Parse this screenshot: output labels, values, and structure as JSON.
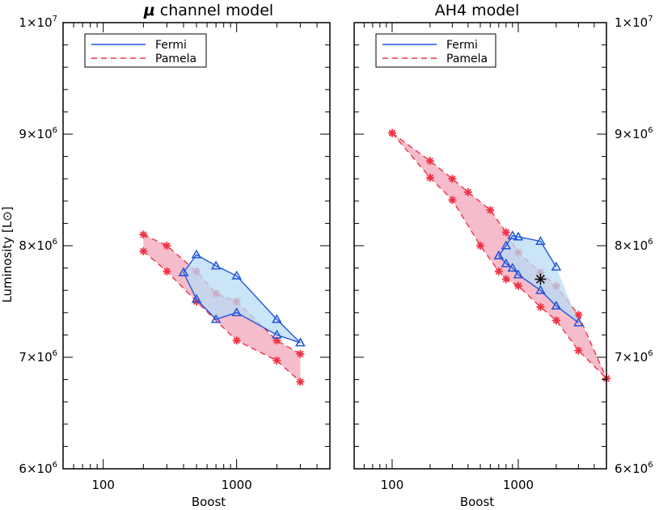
{
  "chart_data": [
    {
      "type": "area",
      "title": "channel model",
      "title_symbol": "μ",
      "xlabel": "Boost",
      "ylabel": "Luminosity [L",
      "ylabel_symbol": "⊙",
      "ylabel_close": "]",
      "xscale": "log",
      "xlim": [
        50,
        5000
      ],
      "ylim": [
        6000000,
        10000000
      ],
      "xticks": [
        100,
        1000
      ],
      "xtick_labels": [
        "100",
        "1000"
      ],
      "yticks": [
        {
          "value": 6000000,
          "mantissa": "6",
          "times": "×",
          "base": "10",
          "exp": "6"
        },
        {
          "value": 7000000,
          "mantissa": "7",
          "times": "×",
          "base": "10",
          "exp": "6"
        },
        {
          "value": 8000000,
          "mantissa": "8",
          "times": "×",
          "base": "10",
          "exp": "6"
        },
        {
          "value": 9000000,
          "mantissa": "9",
          "times": "×",
          "base": "10",
          "exp": "6"
        },
        {
          "value": 10000000,
          "mantissa": "1",
          "times": "×",
          "base": "10",
          "exp": "7"
        }
      ],
      "ytick_side": "left",
      "legend": [
        {
          "label": "Fermi",
          "style": "solid",
          "color": "#2255dd"
        },
        {
          "label": "Pamela",
          "style": "dashed",
          "color": "#ee3344"
        }
      ],
      "legend_position": "top-left",
      "series": [
        {
          "name": "Pamela",
          "line_color": "#ee3344",
          "fill_color": "#f2a6bb",
          "marker": "asterisk",
          "upper": [
            [
              200,
              8100000
            ],
            [
              300,
              8000000
            ],
            [
              500,
              7770000
            ],
            [
              700,
              7570000
            ],
            [
              1000,
              7500000
            ],
            [
              2000,
              7150000
            ],
            [
              3000,
              7030000
            ]
          ],
          "lower": [
            [
              200,
              7950000
            ],
            [
              300,
              7770000
            ],
            [
              500,
              7500000
            ],
            [
              1000,
              7150000
            ],
            [
              2000,
              6970000
            ],
            [
              3000,
              6780000
            ]
          ]
        },
        {
          "name": "Fermi",
          "line_color": "#2255dd",
          "fill_color": "#b8dcf5",
          "marker": "triangle",
          "upper": [
            [
              400,
              7760000
            ],
            [
              500,
              7920000
            ],
            [
              700,
              7820000
            ],
            [
              1000,
              7730000
            ],
            [
              2000,
              7340000
            ],
            [
              3000,
              7130000
            ]
          ],
          "lower": [
            [
              400,
              7760000
            ],
            [
              500,
              7520000
            ],
            [
              700,
              7340000
            ],
            [
              1000,
              7400000
            ],
            [
              2000,
              7200000
            ],
            [
              3000,
              7130000
            ]
          ]
        }
      ],
      "best_fit": null
    },
    {
      "type": "area",
      "title": "AH4 model",
      "title_symbol": "",
      "xlabel": "Boost",
      "ylabel": "",
      "ylabel_symbol": "",
      "ylabel_close": "",
      "xscale": "log",
      "xlim": [
        50,
        5000
      ],
      "ylim": [
        6000000,
        10000000
      ],
      "xticks": [
        100,
        1000
      ],
      "xtick_labels": [
        "100",
        "1000"
      ],
      "yticks": [
        {
          "value": 6000000,
          "mantissa": "6",
          "times": "×",
          "base": "10",
          "exp": "6"
        },
        {
          "value": 7000000,
          "mantissa": "7",
          "times": "×",
          "base": "10",
          "exp": "6"
        },
        {
          "value": 8000000,
          "mantissa": "8",
          "times": "×",
          "base": "10",
          "exp": "6"
        },
        {
          "value": 9000000,
          "mantissa": "9",
          "times": "×",
          "base": "10",
          "exp": "6"
        },
        {
          "value": 10000000,
          "mantissa": "1",
          "times": "×",
          "base": "10",
          "exp": "7"
        }
      ],
      "ytick_side": "right",
      "legend": [
        {
          "label": "Fermi",
          "style": "solid",
          "color": "#2255dd"
        },
        {
          "label": "Pamela",
          "style": "dashed",
          "color": "#ee3344"
        }
      ],
      "legend_position": "top-left",
      "series": [
        {
          "name": "Pamela",
          "line_color": "#ee3344",
          "fill_color": "#f2a6bb",
          "marker": "asterisk",
          "upper": [
            [
              100,
              9010000
            ],
            [
              200,
              8760000
            ],
            [
              300,
              8600000
            ],
            [
              400,
              8480000
            ],
            [
              600,
              8320000
            ],
            [
              800,
              8120000
            ],
            [
              1000,
              7940000
            ],
            [
              1500,
              7760000
            ],
            [
              2000,
              7640000
            ],
            [
              3000,
              7380000
            ],
            [
              5000,
              6810000
            ]
          ],
          "lower": [
            [
              100,
              9010000
            ],
            [
              200,
              8610000
            ],
            [
              300,
              8410000
            ],
            [
              500,
              8000000
            ],
            [
              700,
              7770000
            ],
            [
              800,
              7700000
            ],
            [
              1000,
              7640000
            ],
            [
              1500,
              7450000
            ],
            [
              2000,
              7330000
            ],
            [
              3000,
              7060000
            ],
            [
              5000,
              6810000
            ]
          ]
        },
        {
          "name": "Fermi",
          "line_color": "#2255dd",
          "fill_color": "#b8dcf5",
          "marker": "triangle",
          "upper": [
            [
              700,
              7910000
            ],
            [
              800,
              8000000
            ],
            [
              900,
              8090000
            ],
            [
              1000,
              8080000
            ],
            [
              1500,
              8040000
            ],
            [
              2000,
              7810000
            ]
          ],
          "lower": [
            [
              700,
              7910000
            ],
            [
              800,
              7840000
            ],
            [
              900,
              7800000
            ],
            [
              1000,
              7740000
            ],
            [
              1500,
              7600000
            ],
            [
              2000,
              7460000
            ],
            [
              3000,
              7310000
            ]
          ]
        }
      ],
      "best_fit": {
        "x": 1500,
        "y": 7700000,
        "marker": "asterisk",
        "color": "#111111"
      }
    }
  ]
}
